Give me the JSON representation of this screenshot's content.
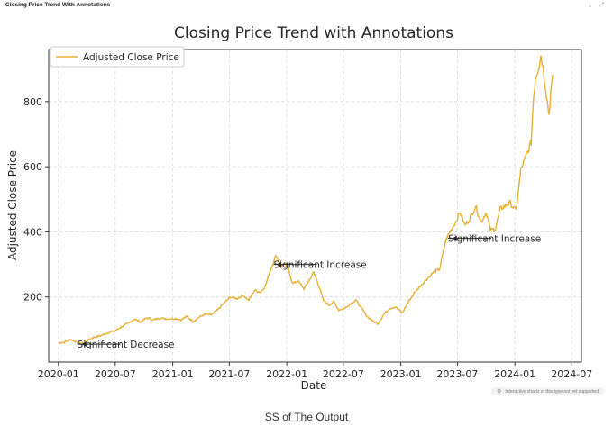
{
  "header": {
    "title": "Closing Price Trend With Annotations"
  },
  "footnote": {
    "text": "Interactive charts of this type not yet supported"
  },
  "caption": "SS of The Output",
  "colors": {
    "line": "#e8b034",
    "grid": "#d9d9d9",
    "axis": "#333333"
  },
  "icons": [
    "download-icon",
    "expand-icon",
    "info-icon"
  ],
  "chart_data": {
    "type": "line",
    "title": "Closing Price Trend with Annotations",
    "xlabel": "Date",
    "ylabel": "Adjusted Close Price",
    "xlim": [
      "2019-12-01",
      "2024-08-01"
    ],
    "ylim": [
      0,
      960
    ],
    "xticks": [
      "2020-01",
      "2020-07",
      "2021-01",
      "2021-07",
      "2022-01",
      "2022-07",
      "2023-01",
      "2023-07",
      "2024-01",
      "2024-07"
    ],
    "yticks": [
      200,
      400,
      600,
      800
    ],
    "grid": true,
    "legend_position": "top-left",
    "series": [
      {
        "name": "Adjusted Close Price",
        "color": "#e8b034",
        "points": [
          [
            "2020-01-02",
            59
          ],
          [
            "2020-01-20",
            61
          ],
          [
            "2020-02-10",
            70
          ],
          [
            "2020-02-25",
            63
          ],
          [
            "2020-03-16",
            55
          ],
          [
            "2020-04-01",
            66
          ],
          [
            "2020-04-20",
            75
          ],
          [
            "2020-05-15",
            81
          ],
          [
            "2020-06-10",
            91
          ],
          [
            "2020-07-01",
            96
          ],
          [
            "2020-07-20",
            108
          ],
          [
            "2020-08-10",
            118
          ],
          [
            "2020-09-01",
            132
          ],
          [
            "2020-09-20",
            123
          ],
          [
            "2020-10-10",
            136
          ],
          [
            "2020-11-01",
            130
          ],
          [
            "2020-11-20",
            135
          ],
          [
            "2020-12-15",
            133
          ],
          [
            "2021-01-10",
            134
          ],
          [
            "2021-01-28",
            130
          ],
          [
            "2021-02-15",
            140
          ],
          [
            "2021-03-08",
            125
          ],
          [
            "2021-03-25",
            137
          ],
          [
            "2021-04-15",
            147
          ],
          [
            "2021-05-05",
            145
          ],
          [
            "2021-05-25",
            160
          ],
          [
            "2021-06-15",
            182
          ],
          [
            "2021-07-05",
            200
          ],
          [
            "2021-07-25",
            195
          ],
          [
            "2021-08-15",
            205
          ],
          [
            "2021-09-01",
            190
          ],
          [
            "2021-09-20",
            220
          ],
          [
            "2021-10-10",
            215
          ],
          [
            "2021-10-25",
            235
          ],
          [
            "2021-11-05",
            270
          ],
          [
            "2021-11-20",
            310
          ],
          [
            "2021-11-29",
            330
          ],
          [
            "2021-12-10",
            295
          ],
          [
            "2021-12-25",
            300
          ],
          [
            "2022-01-05",
            290
          ],
          [
            "2022-01-20",
            240
          ],
          [
            "2022-02-05",
            250
          ],
          [
            "2022-02-25",
            225
          ],
          [
            "2022-03-10",
            245
          ],
          [
            "2022-03-28",
            275
          ],
          [
            "2022-04-10",
            245
          ],
          [
            "2022-04-28",
            190
          ],
          [
            "2022-05-15",
            175
          ],
          [
            "2022-06-01",
            185
          ],
          [
            "2022-06-16",
            160
          ],
          [
            "2022-07-05",
            165
          ],
          [
            "2022-07-25",
            180
          ],
          [
            "2022-08-10",
            190
          ],
          [
            "2022-08-25",
            170
          ],
          [
            "2022-09-15",
            140
          ],
          [
            "2022-10-05",
            125
          ],
          [
            "2022-10-20",
            118
          ],
          [
            "2022-11-10",
            150
          ],
          [
            "2022-11-28",
            165
          ],
          [
            "2022-12-15",
            170
          ],
          [
            "2023-01-05",
            150
          ],
          [
            "2023-01-25",
            185
          ],
          [
            "2023-02-15",
            215
          ],
          [
            "2023-03-05",
            235
          ],
          [
            "2023-03-25",
            255
          ],
          [
            "2023-04-15",
            275
          ],
          [
            "2023-05-05",
            285
          ],
          [
            "2023-05-25",
            375
          ],
          [
            "2023-06-10",
            405
          ],
          [
            "2023-06-25",
            430
          ],
          [
            "2023-07-10",
            460
          ],
          [
            "2023-07-25",
            420
          ],
          [
            "2023-08-10",
            440
          ],
          [
            "2023-08-28",
            480
          ],
          [
            "2023-09-15",
            430
          ],
          [
            "2023-10-01",
            460
          ],
          [
            "2023-10-15",
            405
          ],
          [
            "2023-10-31",
            410
          ],
          [
            "2023-11-15",
            470
          ],
          [
            "2023-12-01",
            480
          ],
          [
            "2023-12-15",
            490
          ],
          [
            "2024-01-05",
            465
          ],
          [
            "2024-01-20",
            590
          ],
          [
            "2024-02-05",
            630
          ],
          [
            "2024-02-22",
            675
          ],
          [
            "2024-03-01",
            820
          ],
          [
            "2024-03-08",
            880
          ],
          [
            "2024-03-15",
            900
          ],
          [
            "2024-03-25",
            945
          ],
          [
            "2024-04-05",
            870
          ],
          [
            "2024-04-19",
            760
          ],
          [
            "2024-04-25",
            830
          ],
          [
            "2024-05-03",
            880
          ]
        ]
      }
    ],
    "annotations": [
      {
        "text": "Significant Decrease",
        "x": "2020-03-16",
        "y": 55,
        "text_x": "2020-03-01",
        "text_y": 55
      },
      {
        "text": "Significant Increase",
        "x": "2021-11-29",
        "y": 300,
        "text_x": "2021-11-20",
        "text_y": 300
      },
      {
        "text": "Significant Increase",
        "x": "2023-06-15",
        "y": 380,
        "text_x": "2023-06-01",
        "text_y": 380
      }
    ]
  }
}
